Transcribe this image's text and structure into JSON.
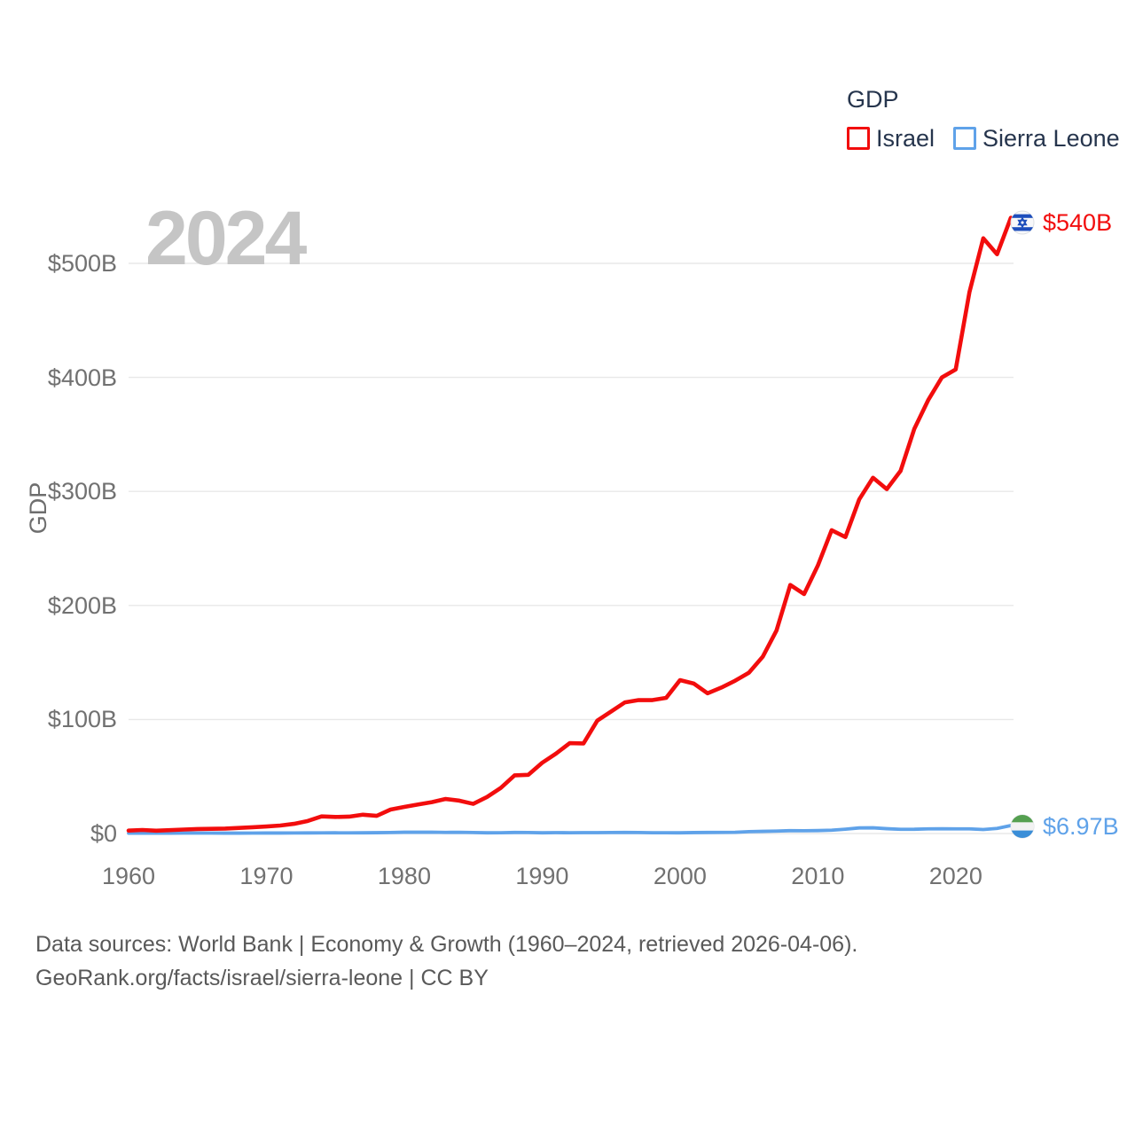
{
  "watermark": "2024",
  "legend": {
    "title": "GDP",
    "items": [
      {
        "label": "Israel",
        "color": "#f20d0d"
      },
      {
        "label": "Sierra Leone",
        "color": "#5fa2e9"
      }
    ]
  },
  "axis": {
    "y_label": "GDP"
  },
  "end_labels": {
    "israel": {
      "value": "$540B",
      "flag": "israel-flag"
    },
    "sierra_leone": {
      "value": "$6.97B",
      "flag": "sierra-leone-flag"
    }
  },
  "footer": {
    "line1": "Data sources: World Bank | Economy & Growth (1960–2024, retrieved 2026-04-06).",
    "line2": "GeoRank.org/facts/israel/sierra-leone | CC BY"
  },
  "chart_data": {
    "type": "line",
    "title": "GDP",
    "ylabel": "GDP",
    "xlabel": "",
    "grid": "horizontal",
    "legend_position": "top-right",
    "xlim": [
      1960,
      2024
    ],
    "ylim": [
      0,
      560
    ],
    "units": "billions USD",
    "x": [
      1960,
      1961,
      1962,
      1963,
      1964,
      1965,
      1966,
      1967,
      1968,
      1969,
      1970,
      1971,
      1972,
      1973,
      1974,
      1975,
      1976,
      1977,
      1978,
      1979,
      1980,
      1981,
      1982,
      1983,
      1984,
      1985,
      1986,
      1987,
      1988,
      1989,
      1990,
      1991,
      1992,
      1993,
      1994,
      1995,
      1996,
      1997,
      1998,
      1999,
      2000,
      2001,
      2002,
      2003,
      2004,
      2005,
      2006,
      2007,
      2008,
      2009,
      2010,
      2011,
      2012,
      2013,
      2014,
      2015,
      2016,
      2017,
      2018,
      2019,
      2020,
      2021,
      2022,
      2023,
      2024
    ],
    "series": [
      {
        "name": "Israel",
        "color": "#f20d0d",
        "values": [
          2.6,
          3.1,
          2.5,
          3.0,
          3.5,
          3.9,
          4.1,
          4.3,
          4.9,
          5.5,
          6.2,
          7.0,
          8.5,
          11.0,
          15.0,
          14.5,
          14.8,
          16.5,
          15.5,
          21.0,
          23.3,
          25.5,
          27.5,
          30.3,
          28.8,
          26.0,
          32.0,
          40.0,
          51.0,
          51.5,
          62.0,
          70.0,
          79.3,
          79.0,
          99.0,
          107.0,
          115.0,
          117.0,
          117.0,
          119.0,
          134.5,
          131.5,
          123.0,
          128.0,
          134.0,
          141.0,
          155.0,
          178.0,
          218.0,
          210.0,
          235.0,
          266.0,
          260.0,
          293.0,
          312.0,
          302.0,
          318.0,
          355.0,
          380.0,
          400.0,
          407.0,
          475.0,
          522.0,
          508.0,
          540.0
        ]
      },
      {
        "name": "Sierra Leone",
        "color": "#5fa2e9",
        "values": [
          0.32,
          0.33,
          0.34,
          0.35,
          0.36,
          0.37,
          0.36,
          0.35,
          0.33,
          0.4,
          0.43,
          0.44,
          0.47,
          0.52,
          0.56,
          0.62,
          0.56,
          0.63,
          0.74,
          0.85,
          1.1,
          1.11,
          1.18,
          0.98,
          1.09,
          0.87,
          0.64,
          0.69,
          0.93,
          0.9,
          0.65,
          0.78,
          0.68,
          0.77,
          0.79,
          0.87,
          0.94,
          0.85,
          0.67,
          0.67,
          0.64,
          0.81,
          0.94,
          0.99,
          1.05,
          1.63,
          1.89,
          2.16,
          2.51,
          2.45,
          2.58,
          2.94,
          3.8,
          4.92,
          5.02,
          4.22,
          3.67,
          3.74,
          4.09,
          4.12,
          4.06,
          4.1,
          3.52,
          4.5,
          6.97
        ]
      }
    ],
    "xticks": [
      1960,
      1970,
      1980,
      1990,
      2000,
      2010,
      2020
    ],
    "yticks": [
      {
        "value": 0,
        "label": "$0"
      },
      {
        "value": 100,
        "label": "$100B"
      },
      {
        "value": 200,
        "label": "$200B"
      },
      {
        "value": 300,
        "label": "$300B"
      },
      {
        "value": 400,
        "label": "$400B"
      },
      {
        "value": 500,
        "label": "$500B"
      }
    ],
    "end_annotations": [
      {
        "series": "Israel",
        "label": "$540B"
      },
      {
        "series": "Sierra Leone",
        "label": "$6.97B"
      }
    ]
  }
}
